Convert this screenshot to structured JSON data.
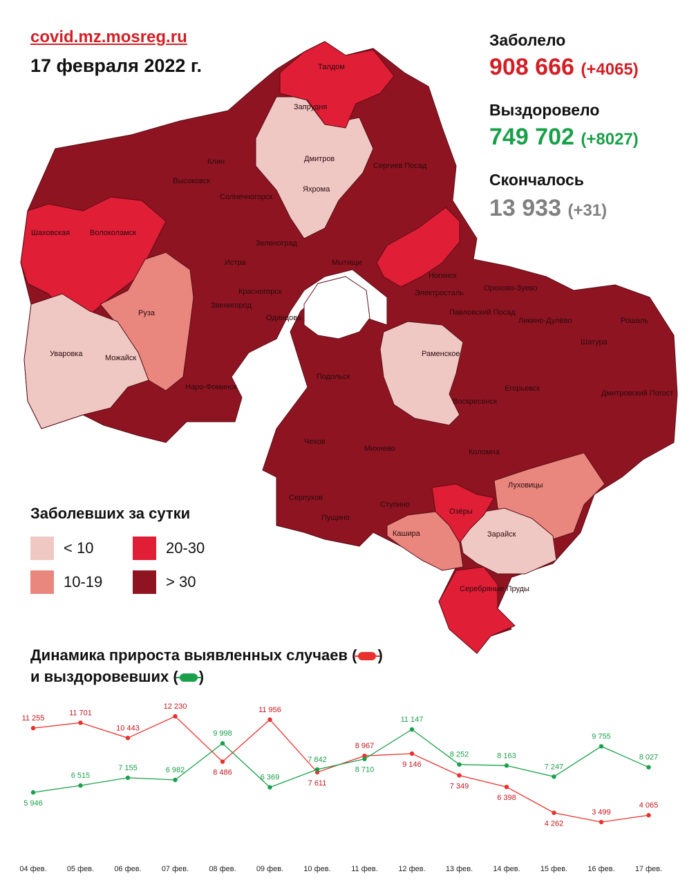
{
  "header": {
    "source": "covid.mz.mosreg.ru",
    "date": "17 февраля 2022 г."
  },
  "stats": {
    "sick_label": "Заболело",
    "sick_value": "908 666",
    "sick_delta": "(+4065)",
    "recovered_label": "Выздоровело",
    "recovered_value": "749 702",
    "recovered_delta": "(+8027)",
    "died_label": "Скончалось",
    "died_value": "13 933",
    "died_delta": "(+31)"
  },
  "map_labels": [
    "Талдом",
    "Запрудня",
    "Дмитров",
    "Яхрома",
    "Клин",
    "Высоковск",
    "Солнечногорск",
    "Сергиев Посад",
    "Шаховская",
    "Волоколамск",
    "Зеленоград",
    "Истра",
    "Мытищи",
    "Ногинск",
    "Красногорск",
    "Звенигород",
    "Электросталь",
    "Павловский Посад",
    "Орехово-Зуево",
    "Ликино-Дулёво",
    "Рошаль",
    "Руза",
    "Одинцово",
    "Уваровка",
    "Можайск",
    "Раменское",
    "Шатура",
    "Наро-Фоминск",
    "Подольск",
    "Воскресенск",
    "Егорьевск",
    "Дмитровский Погост",
    "Чехов",
    "Михнево",
    "Коломна",
    "Серпухов",
    "Ступино",
    "Луховицы",
    "Пущино",
    "Озёры",
    "Кашира",
    "Зарайск",
    "Серебряные Пруды"
  ],
  "legend": {
    "title": "Заболевших за сутки",
    "items": [
      {
        "label": "< 10",
        "color": "#efc8c3"
      },
      {
        "label": "20-30",
        "color": "#e01e36"
      },
      {
        "label": "10-19",
        "color": "#e9877f"
      },
      {
        "label": "> 30",
        "color": "#8e1421"
      }
    ]
  },
  "dynamics_title_line1_a": "Динамика прироста выявленных случаев (",
  "dynamics_title_line1_b": ")",
  "dynamics_title_line2_a": "и выздоровевших (",
  "dynamics_title_line2_b": ")",
  "chart_data": {
    "type": "line",
    "categories": [
      "04 фев.",
      "05 фев.",
      "06 фев.",
      "07 фев.",
      "08 фев.",
      "09 фев.",
      "10 фев.",
      "11 фев.",
      "12 фев.",
      "13 фев.",
      "14 фев.",
      "15 фев.",
      "16 фев.",
      "17 фев."
    ],
    "series": [
      {
        "color": "#e8312d",
        "values": [
          11255,
          11701,
          10443,
          12230,
          8486,
          11956,
          7611,
          8967,
          9146,
          7349,
          6398,
          4262,
          3499,
          4065
        ],
        "labels": [
          "11 255",
          "11 701",
          "10 443",
          "12 230",
          "8 486",
          "11 956",
          "7 611",
          "8 967",
          "9 146",
          "7 349",
          "6 398",
          "4 262",
          "3 499",
          "4 065"
        ]
      },
      {
        "color": "#1aa04a",
        "values": [
          5946,
          6515,
          7155,
          6982,
          9998,
          6369,
          7842,
          8710,
          11147,
          8252,
          8163,
          7247,
          9755,
          8027
        ],
        "labels": [
          "5 946",
          "6 515",
          "7 155",
          "6 982",
          "9 998",
          "6 369",
          "7 842",
          "8 710",
          "11 147",
          "8 252",
          "8 163",
          "7 247",
          "9 755",
          "8 027"
        ]
      }
    ],
    "grid": false,
    "legend": "in-title"
  }
}
